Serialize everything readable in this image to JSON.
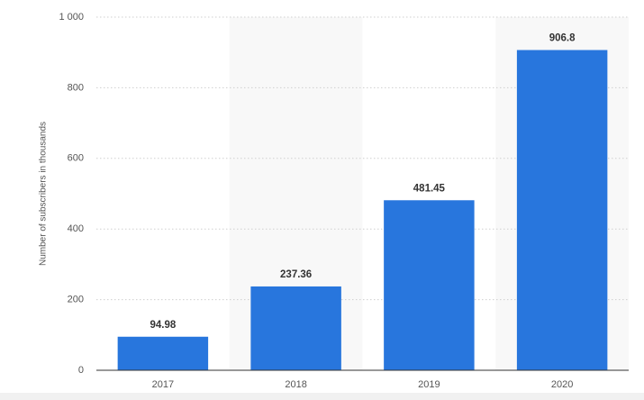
{
  "chart_data": {
    "type": "bar",
    "y_label": "Number of subscribers in thousands",
    "categories": [
      "2017",
      "2018",
      "2019",
      "2020"
    ],
    "values": [
      94.98,
      237.36,
      481.45,
      906.8
    ],
    "color": "#2876dd",
    "ylim": [
      0,
      1000
    ],
    "yticks": [
      0,
      200,
      400,
      600,
      800,
      {
        "value": 1000,
        "label": "1 000"
      }
    ],
    "grid": true
  }
}
